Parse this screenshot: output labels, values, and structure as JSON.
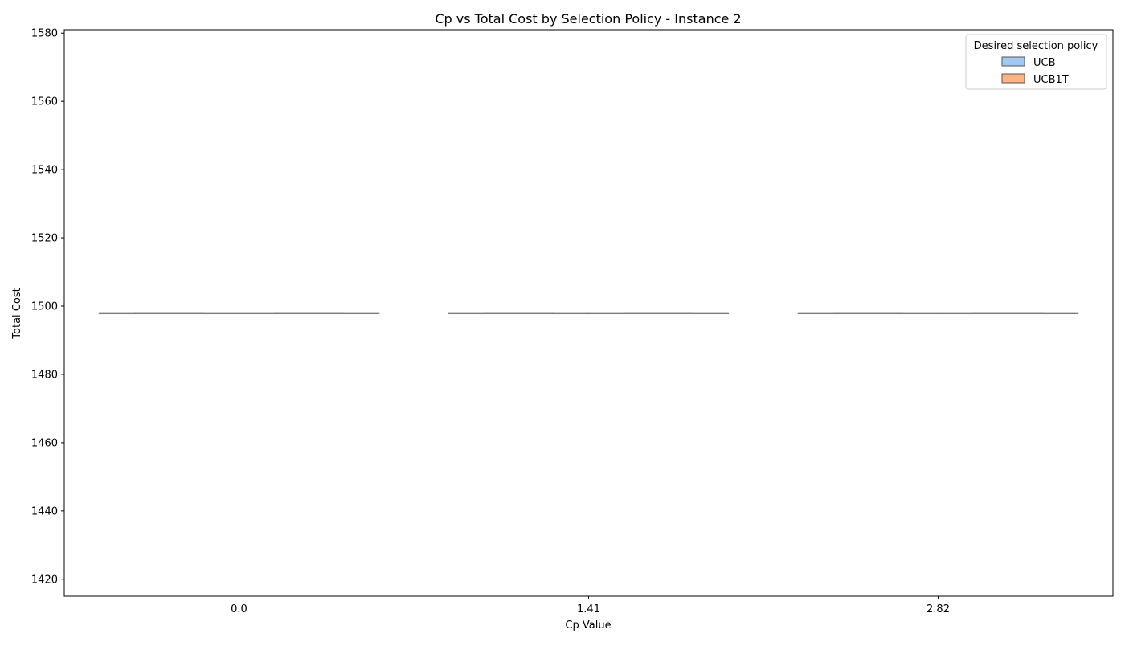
{
  "chart_data": {
    "type": "box",
    "title": "Cp vs Total Cost by Selection Policy - Instance 2",
    "xlabel": "Cp Value",
    "ylabel": "Total Cost",
    "categories": [
      "0.0",
      "1.41",
      "2.82"
    ],
    "ylim": [
      1415,
      1581
    ],
    "yticks": [
      1420,
      1440,
      1460,
      1480,
      1500,
      1520,
      1540,
      1560,
      1580
    ],
    "grid": false,
    "legend": {
      "title": "Desired selection policy",
      "placement": "top-right"
    },
    "series": [
      {
        "name": "UCB",
        "color": "#a1c9f4",
        "boxes": [
          {
            "min": 1498,
            "q1": 1498,
            "median": 1498,
            "q3": 1498,
            "max": 1498
          },
          {
            "min": 1498,
            "q1": 1498,
            "median": 1498,
            "q3": 1498,
            "max": 1498
          },
          {
            "min": 1498,
            "q1": 1498,
            "median": 1498,
            "q3": 1498,
            "max": 1498
          }
        ]
      },
      {
        "name": "UCB1T",
        "color": "#ffb482",
        "boxes": [
          {
            "min": 1498,
            "q1": 1498,
            "median": 1498,
            "q3": 1498,
            "max": 1498
          },
          {
            "min": 1498,
            "q1": 1498,
            "median": 1498,
            "q3": 1498,
            "max": 1498
          },
          {
            "min": 1498,
            "q1": 1498,
            "median": 1498,
            "q3": 1498,
            "max": 1498
          }
        ]
      }
    ]
  }
}
